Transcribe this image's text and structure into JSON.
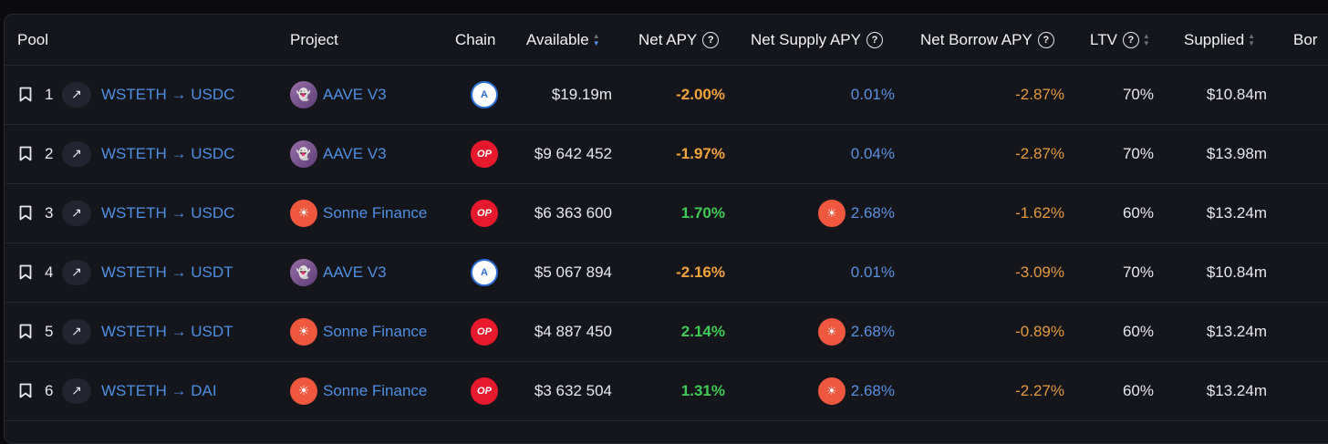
{
  "headers": {
    "pool": "Pool",
    "project": "Project",
    "chain": "Chain",
    "available": "Available",
    "net_apy": "Net APY",
    "net_supply_apy": "Net Supply APY",
    "net_borrow_apy": "Net Borrow APY",
    "ltv": "LTV",
    "supplied": "Supplied",
    "borrowed_partial": "Bor"
  },
  "rows": [
    {
      "index": "1",
      "pool": "WSTETH → USDC",
      "project": "AAVE V3",
      "project_icon": "aave-ghost-icon",
      "chain": "arbitrum",
      "available": "$19.19m",
      "net_apy": "-2.00%",
      "net_apy_color": "#f2a43a",
      "supply_apy": "0.01%",
      "supply_icon": "",
      "borrow_apy": "-2.87%",
      "ltv": "70%",
      "supplied": "$10.84m"
    },
    {
      "index": "2",
      "pool": "WSTETH → USDC",
      "project": "AAVE V3",
      "project_icon": "aave-ghost-icon",
      "chain": "optimism",
      "available": "$9 642 452",
      "net_apy": "-1.97%",
      "net_apy_color": "#f2a43a",
      "supply_apy": "0.04%",
      "supply_icon": "",
      "borrow_apy": "-2.87%",
      "ltv": "70%",
      "supplied": "$13.98m"
    },
    {
      "index": "3",
      "pool": "WSTETH → USDC",
      "project": "Sonne Finance",
      "project_icon": "sonne-sun-icon",
      "chain": "optimism",
      "available": "$6 363 600",
      "net_apy": "1.70%",
      "net_apy_color": "#3fcb55",
      "supply_apy": "2.68%",
      "supply_icon": "sonne",
      "borrow_apy": "-1.62%",
      "ltv": "60%",
      "supplied": "$13.24m"
    },
    {
      "index": "4",
      "pool": "WSTETH → USDT",
      "project": "AAVE V3",
      "project_icon": "aave-ghost-icon",
      "chain": "arbitrum",
      "available": "$5 067 894",
      "net_apy": "-2.16%",
      "net_apy_color": "#f2a43a",
      "supply_apy": "0.01%",
      "supply_icon": "",
      "borrow_apy": "-3.09%",
      "ltv": "70%",
      "supplied": "$10.84m"
    },
    {
      "index": "5",
      "pool": "WSTETH → USDT",
      "project": "Sonne Finance",
      "project_icon": "sonne-sun-icon",
      "chain": "optimism",
      "available": "$4 887 450",
      "net_apy": "2.14%",
      "net_apy_color": "#3fcb55",
      "supply_apy": "2.68%",
      "supply_icon": "sonne",
      "borrow_apy": "-0.89%",
      "ltv": "60%",
      "supplied": "$13.24m"
    },
    {
      "index": "6",
      "pool": "WSTETH → DAI",
      "project": "Sonne Finance",
      "project_icon": "sonne-sun-icon",
      "chain": "optimism",
      "available": "$3 632 504",
      "net_apy": "1.31%",
      "net_apy_color": "#3fcb55",
      "supply_apy": "2.68%",
      "supply_icon": "sonne",
      "borrow_apy": "-2.27%",
      "ltv": "60%",
      "supplied": "$13.24m"
    }
  ],
  "chain_labels": {
    "optimism": "OP",
    "arbitrum": "A"
  }
}
